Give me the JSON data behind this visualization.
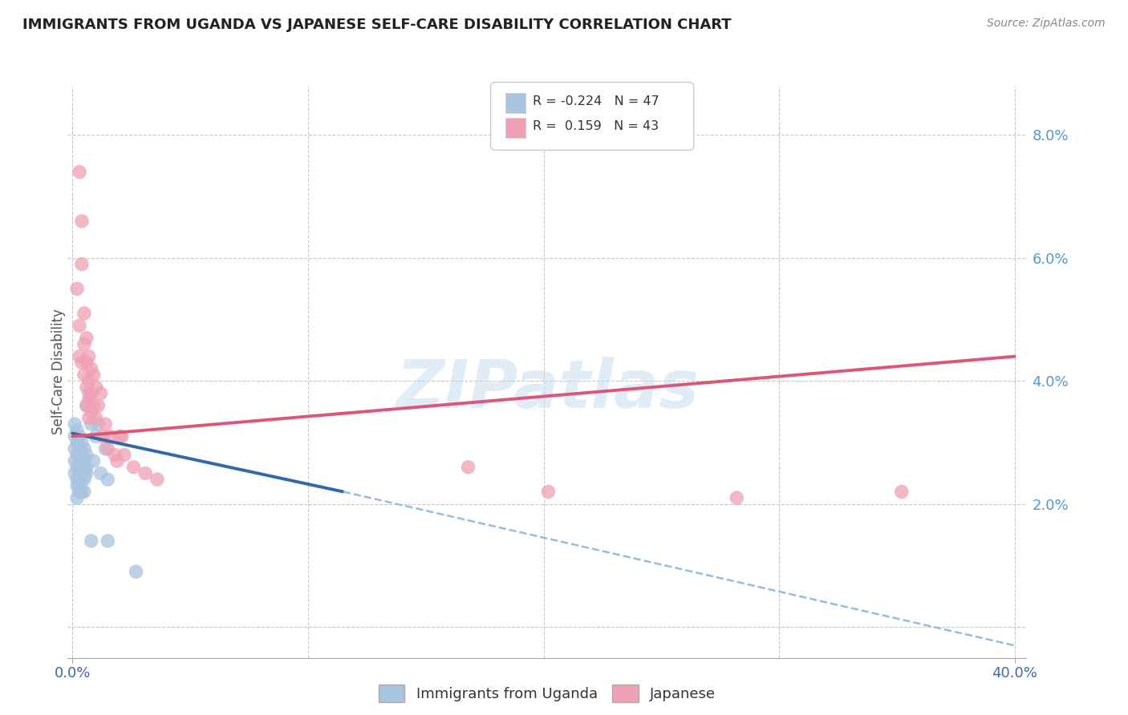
{
  "title": "IMMIGRANTS FROM UGANDA VS JAPANESE SELF-CARE DISABILITY CORRELATION CHART",
  "source": "Source: ZipAtlas.com",
  "ylabel": "Self-Care Disability",
  "xlim": [
    -0.002,
    0.405
  ],
  "ylim": [
    -0.005,
    0.088
  ],
  "plot_xlim": [
    0.0,
    0.4
  ],
  "plot_ylim": [
    0.0,
    0.085
  ],
  "ytick_vals": [
    0.0,
    0.02,
    0.04,
    0.06,
    0.08
  ],
  "ytick_labels": [
    "",
    "2.0%",
    "4.0%",
    "6.0%",
    "8.0%"
  ],
  "xtick_vals": [
    0.0,
    0.4
  ],
  "xtick_labels": [
    "0.0%",
    "40.0%"
  ],
  "legend_r1": "R = -0.224",
  "legend_n1": "N = 47",
  "legend_r2": "R =  0.159",
  "legend_n2": "N = 43",
  "color_blue": "#a8c4e0",
  "color_pink": "#f0a0b5",
  "line_blue": "#3366aa",
  "line_pink": "#dd5577",
  "line_blue_dash": "#99bbdd",
  "watermark": "ZIPatlas",
  "background": "#ffffff",
  "grid_color": "#c8c8c8",
  "blue_dots": [
    [
      0.001,
      0.033
    ],
    [
      0.001,
      0.031
    ],
    [
      0.001,
      0.029
    ],
    [
      0.001,
      0.027
    ],
    [
      0.001,
      0.025
    ],
    [
      0.002,
      0.032
    ],
    [
      0.002,
      0.03
    ],
    [
      0.002,
      0.028
    ],
    [
      0.002,
      0.026
    ],
    [
      0.002,
      0.024
    ],
    [
      0.002,
      0.023
    ],
    [
      0.002,
      0.021
    ],
    [
      0.003,
      0.031
    ],
    [
      0.003,
      0.029
    ],
    [
      0.003,
      0.028
    ],
    [
      0.003,
      0.027
    ],
    [
      0.003,
      0.026
    ],
    [
      0.003,
      0.025
    ],
    [
      0.003,
      0.024
    ],
    [
      0.003,
      0.023
    ],
    [
      0.003,
      0.022
    ],
    [
      0.004,
      0.03
    ],
    [
      0.004,
      0.028
    ],
    [
      0.004,
      0.026
    ],
    [
      0.004,
      0.025
    ],
    [
      0.004,
      0.024
    ],
    [
      0.004,
      0.022
    ],
    [
      0.005,
      0.029
    ],
    [
      0.005,
      0.027
    ],
    [
      0.005,
      0.025
    ],
    [
      0.005,
      0.024
    ],
    [
      0.005,
      0.022
    ],
    [
      0.006,
      0.036
    ],
    [
      0.006,
      0.028
    ],
    [
      0.006,
      0.026
    ],
    [
      0.006,
      0.025
    ],
    [
      0.007,
      0.038
    ],
    [
      0.008,
      0.033
    ],
    [
      0.009,
      0.027
    ],
    [
      0.01,
      0.031
    ],
    [
      0.011,
      0.033
    ],
    [
      0.012,
      0.025
    ],
    [
      0.014,
      0.029
    ],
    [
      0.015,
      0.024
    ],
    [
      0.008,
      0.014
    ],
    [
      0.015,
      0.014
    ],
    [
      0.027,
      0.009
    ]
  ],
  "pink_dots": [
    [
      0.002,
      0.055
    ],
    [
      0.003,
      0.049
    ],
    [
      0.003,
      0.044
    ],
    [
      0.004,
      0.066
    ],
    [
      0.004,
      0.059
    ],
    [
      0.004,
      0.043
    ],
    [
      0.005,
      0.051
    ],
    [
      0.005,
      0.046
    ],
    [
      0.005,
      0.041
    ],
    [
      0.006,
      0.047
    ],
    [
      0.006,
      0.043
    ],
    [
      0.006,
      0.039
    ],
    [
      0.006,
      0.036
    ],
    [
      0.007,
      0.044
    ],
    [
      0.007,
      0.04
    ],
    [
      0.007,
      0.037
    ],
    [
      0.007,
      0.034
    ],
    [
      0.008,
      0.042
    ],
    [
      0.008,
      0.038
    ],
    [
      0.008,
      0.035
    ],
    [
      0.009,
      0.041
    ],
    [
      0.009,
      0.036
    ],
    [
      0.01,
      0.039
    ],
    [
      0.01,
      0.034
    ],
    [
      0.011,
      0.036
    ],
    [
      0.012,
      0.038
    ],
    [
      0.013,
      0.031
    ],
    [
      0.014,
      0.033
    ],
    [
      0.015,
      0.029
    ],
    [
      0.016,
      0.031
    ],
    [
      0.018,
      0.028
    ],
    [
      0.019,
      0.027
    ],
    [
      0.02,
      0.031
    ],
    [
      0.021,
      0.031
    ],
    [
      0.022,
      0.028
    ],
    [
      0.026,
      0.026
    ],
    [
      0.031,
      0.025
    ],
    [
      0.036,
      0.024
    ],
    [
      0.168,
      0.026
    ],
    [
      0.202,
      0.022
    ],
    [
      0.282,
      0.021
    ],
    [
      0.352,
      0.022
    ],
    [
      0.003,
      0.074
    ]
  ],
  "blue_line_solid": [
    [
      0.0,
      0.0315
    ],
    [
      0.115,
      0.022
    ]
  ],
  "blue_line_dash": [
    [
      0.115,
      0.022
    ],
    [
      0.4,
      -0.003
    ]
  ],
  "pink_line": [
    [
      0.0,
      0.031
    ],
    [
      0.4,
      0.044
    ]
  ]
}
